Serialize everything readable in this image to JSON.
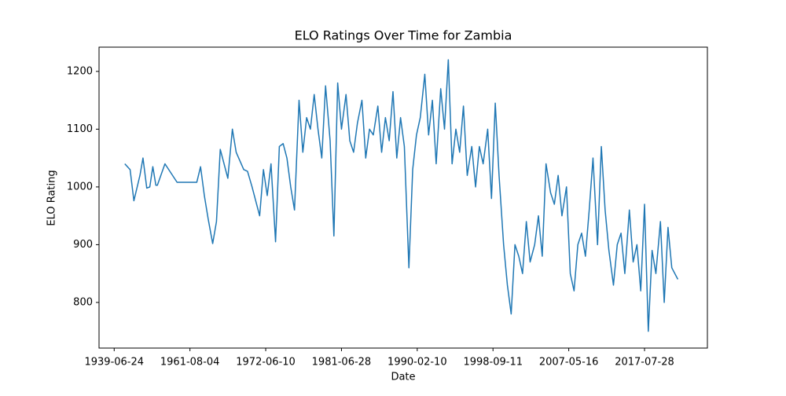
{
  "chart_data": {
    "type": "line",
    "title": "ELO Ratings Over Time for Zambia",
    "xlabel": "Date",
    "ylabel": "ELO Rating",
    "xlim": [
      -20,
      783
    ],
    "ylim": [
      721,
      1242
    ],
    "xticks": [
      {
        "value": 0,
        "label": "1939-06-24"
      },
      {
        "value": 100,
        "label": "1961-08-04"
      },
      {
        "value": 200,
        "label": "1972-06-10"
      },
      {
        "value": 300,
        "label": "1981-06-28"
      },
      {
        "value": 400,
        "label": "1990-02-10"
      },
      {
        "value": 500,
        "label": "1998-09-11"
      },
      {
        "value": 600,
        "label": "2007-05-16"
      },
      {
        "value": 700,
        "label": "2017-07-28"
      }
    ],
    "yticks": [
      800,
      900,
      1000,
      1100,
      1200
    ],
    "series": [
      {
        "color": "#1f77b4",
        "x": [
          14,
          21,
          26,
          34,
          38,
          43,
          47,
          51,
          55,
          57,
          67,
          83,
          99,
          109,
          114,
          119,
          124,
          130,
          135,
          140,
          150,
          156,
          161,
          171,
          176,
          182,
          192,
          197,
          202,
          207,
          213,
          218,
          223,
          228,
          233,
          238,
          244,
          249,
          254,
          259,
          264,
          269,
          274,
          279,
          285,
          290,
          295,
          300,
          306,
          311,
          316,
          321,
          327,
          332,
          337,
          342,
          348,
          353,
          358,
          363,
          368,
          373,
          378,
          383,
          389,
          394,
          399,
          404,
          410,
          415,
          420,
          425,
          431,
          436,
          441,
          446,
          451,
          456,
          461,
          466,
          472,
          477,
          482,
          487,
          493,
          498,
          503,
          508,
          514,
          519,
          524,
          529,
          534,
          539,
          544,
          549,
          555,
          560,
          565,
          570,
          576,
          581,
          586,
          591,
          597,
          602,
          607,
          612,
          617,
          622,
          627,
          632,
          638,
          643,
          648,
          653,
          659,
          664,
          669,
          674,
          680,
          685,
          690,
          695,
          700,
          705,
          710,
          715,
          721,
          726,
          731,
          736,
          744
        ],
        "values": [
          1040,
          1030,
          976,
          1020,
          1050,
          998,
          1000,
          1035,
          1003,
          1003,
          1040,
          1008,
          1008,
          1008,
          1035,
          985,
          945,
          902,
          940,
          1065,
          1015,
          1100,
          1060,
          1030,
          1027,
          1000,
          950,
          1030,
          985,
          1040,
          905,
          1070,
          1075,
          1050,
          1000,
          960,
          1150,
          1060,
          1120,
          1100,
          1160,
          1100,
          1050,
          1175,
          1080,
          915,
          1180,
          1100,
          1160,
          1080,
          1060,
          1110,
          1150,
          1050,
          1100,
          1090,
          1140,
          1060,
          1120,
          1080,
          1165,
          1050,
          1120,
          1070,
          860,
          1030,
          1090,
          1120,
          1195,
          1090,
          1150,
          1040,
          1170,
          1100,
          1220,
          1040,
          1100,
          1060,
          1140,
          1020,
          1070,
          1000,
          1070,
          1040,
          1100,
          980,
          1145,
          1020,
          900,
          830,
          780,
          900,
          880,
          850,
          940,
          870,
          900,
          950,
          880,
          1040,
          990,
          970,
          1020,
          950,
          1000,
          850,
          820,
          900,
          920,
          880,
          960,
          1050,
          900,
          1070,
          960,
          890,
          830,
          900,
          920,
          850,
          960,
          870,
          900,
          820,
          970,
          750,
          890,
          850,
          940,
          800,
          930,
          860,
          840
        ]
      }
    ]
  }
}
